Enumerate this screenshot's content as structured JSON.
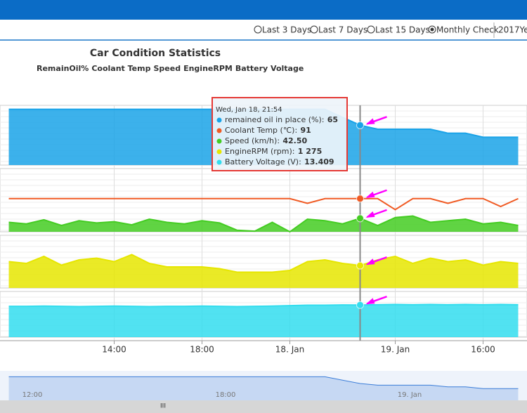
{
  "toolbar": {
    "options": [
      "Last 3 Days",
      "Last 7 Days",
      "Last 15 Days",
      "Monthly Check"
    ],
    "year": "2017Ye"
  },
  "chart_data": {
    "type": "line",
    "title": "Car Condition Statistics",
    "categories": [
      null,
      null,
      null,
      null,
      null,
      null,
      "14:00",
      null,
      null,
      null,
      null,
      "18:00",
      null,
      null,
      null,
      null,
      "18. Jan",
      null,
      null,
      null,
      null,
      null,
      "19. Jan",
      null,
      null,
      null,
      null,
      "16:00",
      null,
      null
    ],
    "series": [
      {
        "name": "RemainOil%",
        "color": "#1aa3e8",
        "fill": true,
        "ylim": [
          55,
          70
        ],
        "values": [
          69,
          69,
          69,
          69,
          69,
          69,
          69,
          69,
          69,
          69,
          69,
          69,
          69,
          69,
          69,
          69,
          69,
          69,
          69,
          67,
          65,
          64,
          64,
          64,
          64,
          63,
          63,
          62,
          62,
          62
        ]
      },
      {
        "name": "Coolant Temp",
        "color": "#f05a23",
        "fill": false,
        "ylim": [
          70,
          110
        ],
        "values": [
          91,
          91,
          91,
          91,
          91,
          91,
          91,
          91,
          91,
          91,
          91,
          91,
          91,
          91,
          91,
          91,
          91,
          88,
          91,
          91,
          91,
          91,
          84,
          91,
          91,
          88,
          91,
          91,
          86,
          91
        ]
      },
      {
        "name": "Speed",
        "color": "#44cc22",
        "fill": true,
        "ylim": [
          0,
          200
        ],
        "values": [
          30,
          25,
          38,
          20,
          35,
          28,
          32,
          22,
          40,
          30,
          25,
          35,
          28,
          5,
          2,
          30,
          0,
          40,
          35,
          25,
          42.5,
          20,
          45,
          50,
          30,
          35,
          40,
          25,
          30,
          20
        ]
      },
      {
        "name": "EngineRPM",
        "color": "#e6e600",
        "fill": true,
        "ylim": [
          0,
          3000
        ],
        "values": [
          1500,
          1400,
          1800,
          1300,
          1600,
          1700,
          1500,
          1900,
          1400,
          1200,
          1200,
          1200,
          1100,
          900,
          900,
          900,
          1000,
          1500,
          1600,
          1400,
          1275,
          1600,
          1800,
          1400,
          1700,
          1500,
          1600,
          1300,
          1500,
          1400
        ]
      },
      {
        "name": "Battery Voltage",
        "color": "#33ddee",
        "fill": true,
        "ylim": [
          12,
          14
        ],
        "values": [
          13.35,
          13.35,
          13.36,
          13.35,
          13.34,
          13.35,
          13.36,
          13.35,
          13.34,
          13.35,
          13.35,
          13.36,
          13.35,
          13.34,
          13.35,
          13.36,
          13.38,
          13.4,
          13.4,
          13.41,
          13.409,
          13.42,
          13.43,
          13.42,
          13.43,
          13.42,
          13.43,
          13.42,
          13.43,
          13.42
        ]
      }
    ],
    "tooltip": {
      "title": "Wed, Jan 18, 21:54",
      "rows": [
        {
          "label": "remained oil in place (%)",
          "value": 65
        },
        {
          "label": "Coolant Temp (℃)",
          "value": 91
        },
        {
          "label": "Speed (km/h)",
          "value": 42.5,
          "value_label": "42.50"
        },
        {
          "label": "EngineRPM (rpm)",
          "value": 1275,
          "value_label": "1 275"
        },
        {
          "label": "Battery Voltage (V)",
          "value": 13.409
        }
      ]
    }
  },
  "navigator": {
    "labels": [
      "12:00",
      "18:00",
      "19. Jan"
    ]
  }
}
